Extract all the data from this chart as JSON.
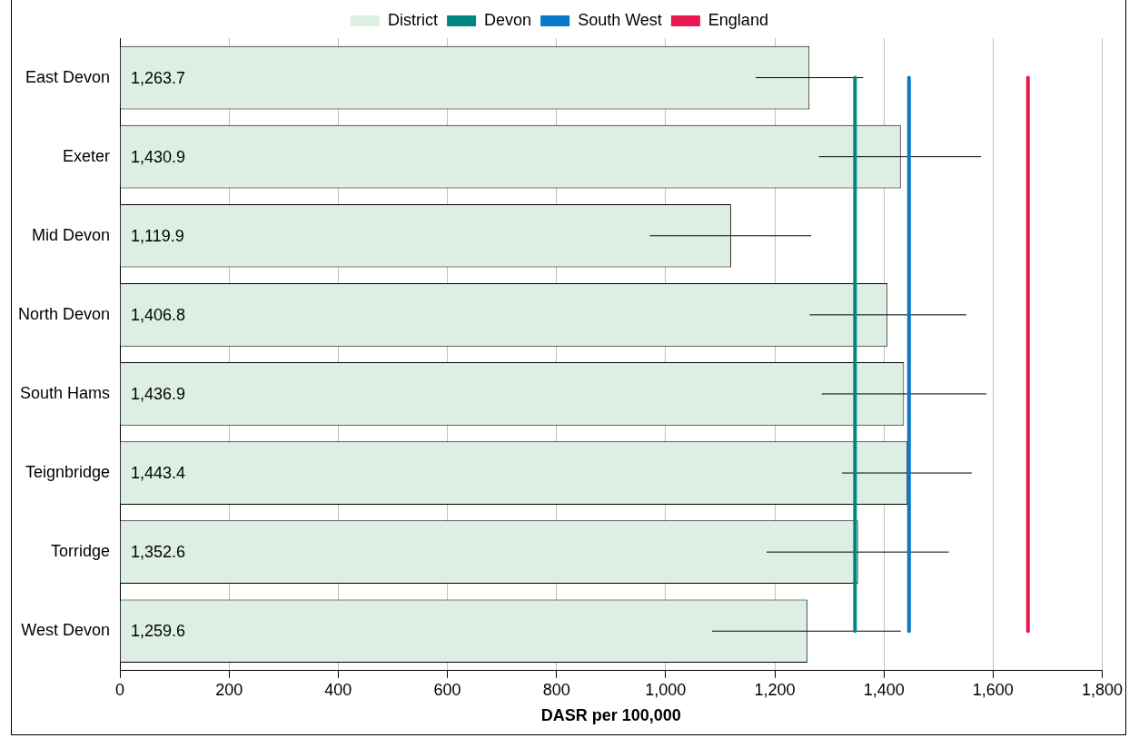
{
  "chart_data": {
    "type": "bar",
    "orientation": "horizontal",
    "xlabel": "DASR per 100,000",
    "categories": [
      "East Devon",
      "Exeter",
      "Mid Devon",
      "North Devon",
      "South Hams",
      "Teignbridge",
      "Torridge",
      "West Devon"
    ],
    "series": [
      {
        "name": "District",
        "color": "#dcefe2",
        "values": [
          1263.7,
          1430.9,
          1119.9,
          1406.8,
          1436.9,
          1443.4,
          1352.6,
          1259.6
        ],
        "value_labels": [
          "1,263.7",
          "1,430.9",
          "1,119.9",
          "1,406.8",
          "1,436.9",
          "1,443.4",
          "1,352.6",
          "1,259.6"
        ],
        "errors": [
          [
            1165,
            1362
          ],
          [
            1281,
            1578
          ],
          [
            971,
            1267
          ],
          [
            1264,
            1551
          ],
          [
            1286,
            1588
          ],
          [
            1323,
            1561
          ],
          [
            1185,
            1519
          ],
          [
            1085,
            1431
          ]
        ]
      }
    ],
    "ref_lines": [
      {
        "axis": "x",
        "value": 1347,
        "label": "Devon",
        "color": "#00877f"
      },
      {
        "axis": "x",
        "value": 1446,
        "label": "South West",
        "color": "#0a78c8"
      },
      {
        "axis": "x",
        "value": 1664,
        "label": "England",
        "color": "#e8174f"
      }
    ],
    "xlim": [
      0,
      1800
    ],
    "xticks": [
      0,
      200,
      400,
      600,
      800,
      {
        "value": 1000,
        "label": "1,000"
      },
      {
        "value": 1200,
        "label": "1,200"
      },
      {
        "value": 1400,
        "label": "1,400"
      },
      {
        "value": 1600,
        "label": "1,600"
      },
      {
        "value": 1800,
        "label": "1,800"
      }
    ],
    "grid": "x",
    "legend": "top"
  }
}
